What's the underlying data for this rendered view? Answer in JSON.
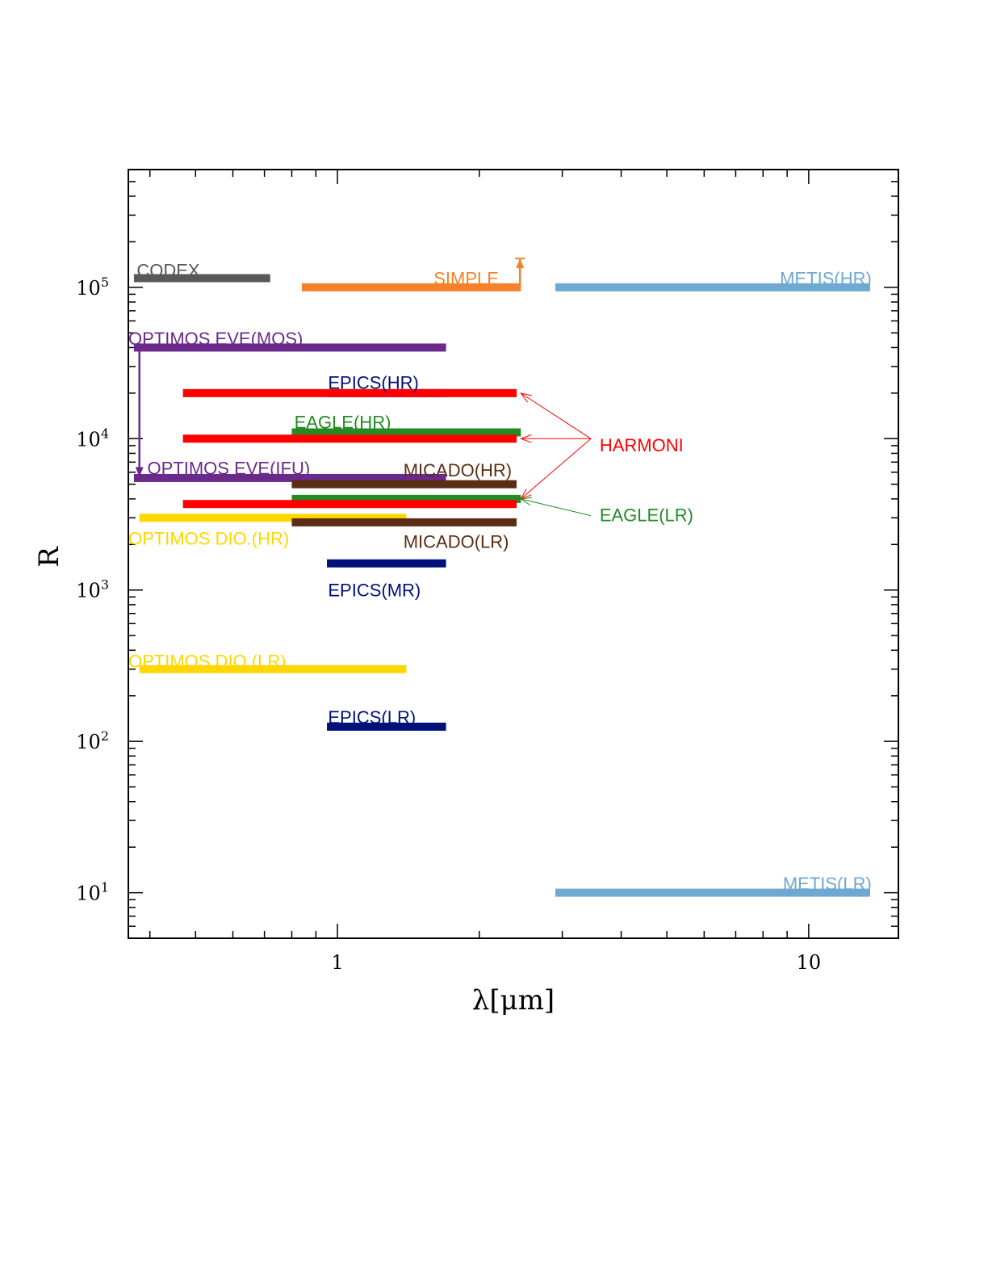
{
  "chart_data": {
    "type": "range-bar",
    "xlabel": "λ[μm]",
    "ylabel": "R",
    "x_scale": "log",
    "y_scale": "log",
    "xlim": [
      0.36,
      15.5
    ],
    "ylim": [
      5,
      600000
    ],
    "x_ticklabels": [
      {
        "value": 1,
        "label": "1"
      },
      {
        "value": 10,
        "label": "10"
      }
    ],
    "y_ticklabels": [
      {
        "value": 10,
        "base": "10",
        "exp": "1"
      },
      {
        "value": 100,
        "base": "10",
        "exp": "2"
      },
      {
        "value": 1000,
        "base": "10",
        "exp": "3"
      },
      {
        "value": 10000,
        "base": "10",
        "exp": "4"
      },
      {
        "value": 100000,
        "base": "10",
        "exp": "5"
      }
    ],
    "colors": {
      "codex": "#595959",
      "simple": "#f5822a",
      "metis": "#6fa8d0",
      "optimos_eve": "#6a2a8c",
      "epics": "#00127a",
      "harmoni": "#ff0000",
      "eagle": "#238b23",
      "micado": "#5a2d14",
      "optimos_dio": "#ffd700"
    },
    "bars": [
      {
        "instrument": "CODEX",
        "x": [
          0.37,
          0.72
        ],
        "r": 115000,
        "color": "#595959"
      },
      {
        "instrument": "SIMPLE",
        "x": [
          0.84,
          2.45
        ],
        "r": 100000,
        "color": "#f5822a"
      },
      {
        "instrument": "METIS(HR)",
        "x": [
          2.9,
          13.5
        ],
        "r": 100000,
        "color": "#6fa8d0"
      },
      {
        "instrument": "OPTIMOS EVE(MOS)",
        "x": [
          0.37,
          1.7
        ],
        "r": 40000,
        "color": "#6a2a8c"
      },
      {
        "instrument": "EPICS(HR)",
        "x": [
          0.95,
          1.7
        ],
        "r": 20000,
        "color": "#00127a"
      },
      {
        "instrument": "HARMONI",
        "x": [
          0.47,
          2.4
        ],
        "r": 20000,
        "color": "#ff0000"
      },
      {
        "instrument": "EAGLE(HR)",
        "x": [
          0.8,
          2.45
        ],
        "r": 11000,
        "color": "#238b23"
      },
      {
        "instrument": "HARMONI",
        "x": [
          0.47,
          2.4
        ],
        "r": 10000,
        "color": "#ff0000"
      },
      {
        "instrument": "OPTIMOS EVE(IFU)",
        "x": [
          0.37,
          1.7
        ],
        "r": 5500,
        "color": "#6a2a8c"
      },
      {
        "instrument": "MICADO(HR)",
        "x": [
          0.8,
          2.4
        ],
        "r": 5000,
        "color": "#5a2d14"
      },
      {
        "instrument": "EAGLE(LR)",
        "x": [
          0.8,
          2.45
        ],
        "r": 4000,
        "color": "#238b23"
      },
      {
        "instrument": "HARMONI",
        "x": [
          0.47,
          2.4
        ],
        "r": 3700,
        "color": "#ff0000"
      },
      {
        "instrument": "OPTIMOS DIO.(HR)",
        "x": [
          0.38,
          1.4
        ],
        "r": 3000,
        "color": "#ffd700"
      },
      {
        "instrument": "MICADO(LR)",
        "x": [
          0.8,
          2.4
        ],
        "r": 2800,
        "color": "#5a2d14"
      },
      {
        "instrument": "EPICS(MR)",
        "x": [
          0.95,
          1.7
        ],
        "r": 1500,
        "color": "#00127a"
      },
      {
        "instrument": "OPTIMOS DIO.(LR)",
        "x": [
          0.38,
          1.4
        ],
        "r": 300,
        "color": "#ffd700"
      },
      {
        "instrument": "EPICS(LR)",
        "x": [
          0.95,
          1.7
        ],
        "r": 125,
        "color": "#00127a"
      },
      {
        "instrument": "METIS(LR)",
        "x": [
          2.9,
          13.5
        ],
        "r": 10,
        "color": "#6fa8d0"
      }
    ],
    "epics_hr_gaps": [
      1.15,
      1.4
    ],
    "limit_arrows": [
      {
        "instrument": "SIMPLE",
        "x": 2.44,
        "from_r": 100000,
        "to_r": 155000,
        "direction": "up",
        "color": "#f5822a"
      },
      {
        "instrument": "OPTIMOS EVE",
        "x": 0.38,
        "from_r": 40000,
        "to_r": 5600,
        "direction": "down",
        "color": "#6a2a8c"
      }
    ],
    "annotations": [
      {
        "text": "CODEX",
        "x": 0.375,
        "r": 130000,
        "anchor": "start",
        "color": "#595959"
      },
      {
        "text": "SIMPLE",
        "x": 2.2,
        "r": 115000,
        "anchor": "end",
        "color": "#f5822a"
      },
      {
        "text": "METIS(HR)",
        "x": 13.6,
        "r": 115000,
        "anchor": "end",
        "color": "#6fa8d0"
      },
      {
        "text": "OPTIMOS EVE(MOS)",
        "x": 0.36,
        "r": 46000,
        "anchor": "start",
        "color": "#6a2a8c"
      },
      {
        "text": "EPICS(HR)",
        "x": 0.955,
        "r": 23500,
        "anchor": "start",
        "color": "#00127a"
      },
      {
        "text": "EAGLE(HR)",
        "x": 0.81,
        "r": 12900,
        "anchor": "start",
        "color": "#238b23"
      },
      {
        "text": "OPTIMOS EVE(IFU)",
        "x": 0.395,
        "r": 6400,
        "anchor": "start",
        "color": "#6a2a8c"
      },
      {
        "text": "MICADO(HR)",
        "x": 1.38,
        "r": 6200,
        "anchor": "start",
        "color": "#5a2d14"
      },
      {
        "text": "OPTIMOS DIO.(HR)",
        "x": 0.36,
        "r": 2200,
        "anchor": "start",
        "color": "#ffd700"
      },
      {
        "text": "MICADO(LR)",
        "x": 1.38,
        "r": 2100,
        "anchor": "start",
        "color": "#5a2d14"
      },
      {
        "text": "EPICS(MR)",
        "x": 0.955,
        "r": 1000,
        "anchor": "start",
        "color": "#00127a"
      },
      {
        "text": "OPTIMOS DIO.(LR)",
        "x": 0.36,
        "r": 340,
        "anchor": "start",
        "color": "#ffd700"
      },
      {
        "text": "EPICS(LR)",
        "x": 0.955,
        "r": 145,
        "anchor": "start",
        "color": "#00127a"
      },
      {
        "text": "METIS(LR)",
        "x": 13.6,
        "r": 11500,
        "anchor": "end",
        "color": "#6fa8d0",
        "r_override": 11.5
      },
      {
        "text": "HARMONI",
        "x": 3.6,
        "r": 9100,
        "anchor": "start",
        "color": "#ff0000"
      },
      {
        "text": "EAGLE(LR)",
        "x": 3.6,
        "r": 3150,
        "anchor": "start",
        "color": "#238b23"
      }
    ],
    "pointers": [
      {
        "from": [
          3.45,
          10000
        ],
        "to": [
          2.45,
          20000
        ],
        "color": "#ff0000"
      },
      {
        "from": [
          3.45,
          10000
        ],
        "to": [
          2.45,
          10000
        ],
        "color": "#ff0000"
      },
      {
        "from": [
          3.45,
          10000
        ],
        "to": [
          2.45,
          4000
        ],
        "color": "#ff0000"
      },
      {
        "from": [
          3.45,
          3100
        ],
        "to": [
          2.45,
          4000
        ],
        "color": "#238b23"
      }
    ],
    "grid": false,
    "legend": "none"
  }
}
